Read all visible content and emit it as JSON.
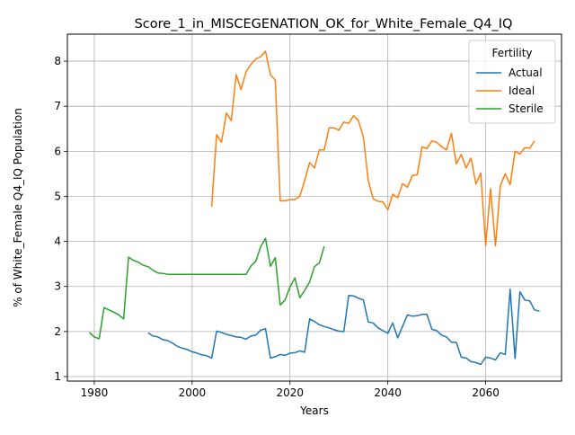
{
  "chart_data": {
    "type": "line",
    "title": "Score_1_in_MISCEGENATION_OK_for_White_Female_Q4_IQ",
    "xlabel": "Years",
    "ylabel": "% of White_Female Q4_IQ Population",
    "xlim": [
      1974.5,
      2075.5
    ],
    "ylim": [
      0.9,
      8.6
    ],
    "xticks": [
      1980,
      2000,
      2020,
      2040,
      2060
    ],
    "yticks": [
      1,
      2,
      3,
      4,
      5,
      6,
      7,
      8
    ],
    "grid": true,
    "legend": {
      "title": "Fertility",
      "position": "top-right"
    },
    "series": [
      {
        "name": "Actual",
        "color": "#1f77b4",
        "points": [
          [
            1991,
            1.97
          ],
          [
            1992,
            1.9
          ],
          [
            1993,
            1.88
          ],
          [
            1994,
            1.82
          ],
          [
            1995,
            1.8
          ],
          [
            1996,
            1.74
          ],
          [
            1997,
            1.67
          ],
          [
            1998,
            1.63
          ],
          [
            1999,
            1.6
          ],
          [
            2000,
            1.55
          ],
          [
            2001,
            1.52
          ],
          [
            2002,
            1.48
          ],
          [
            2003,
            1.46
          ],
          [
            2004,
            1.41
          ],
          [
            2005,
            2.01
          ],
          [
            2006,
            1.98
          ],
          [
            2007,
            1.94
          ],
          [
            2008,
            1.91
          ],
          [
            2009,
            1.88
          ],
          [
            2010,
            1.87
          ],
          [
            2011,
            1.83
          ],
          [
            2012,
            1.9
          ],
          [
            2013,
            1.92
          ],
          [
            2014,
            2.03
          ],
          [
            2015,
            2.06
          ],
          [
            2016,
            1.41
          ],
          [
            2017,
            1.44
          ],
          [
            2018,
            1.49
          ],
          [
            2019,
            1.47
          ],
          [
            2020,
            1.52
          ],
          [
            2021,
            1.53
          ],
          [
            2022,
            1.57
          ],
          [
            2023,
            1.54
          ],
          [
            2024,
            2.28
          ],
          [
            2025,
            2.22
          ],
          [
            2026,
            2.15
          ],
          [
            2027,
            2.11
          ],
          [
            2028,
            2.08
          ],
          [
            2029,
            2.04
          ],
          [
            2030,
            2.01
          ],
          [
            2031,
            2.0
          ],
          [
            2032,
            2.8
          ],
          [
            2033,
            2.79
          ],
          [
            2034,
            2.74
          ],
          [
            2035,
            2.7
          ],
          [
            2036,
            2.21
          ],
          [
            2037,
            2.19
          ],
          [
            2038,
            2.08
          ],
          [
            2039,
            2.02
          ],
          [
            2040,
            1.96
          ],
          [
            2041,
            2.19
          ],
          [
            2042,
            1.86
          ],
          [
            2043,
            2.11
          ],
          [
            2044,
            2.37
          ],
          [
            2045,
            2.34
          ],
          [
            2046,
            2.35
          ],
          [
            2047,
            2.38
          ],
          [
            2048,
            2.38
          ],
          [
            2049,
            2.05
          ],
          [
            2050,
            2.02
          ],
          [
            2051,
            1.92
          ],
          [
            2052,
            1.88
          ],
          [
            2053,
            1.76
          ],
          [
            2054,
            1.76
          ],
          [
            2055,
            1.43
          ],
          [
            2056,
            1.41
          ],
          [
            2057,
            1.33
          ],
          [
            2058,
            1.31
          ],
          [
            2059,
            1.27
          ],
          [
            2060,
            1.43
          ],
          [
            2061,
            1.41
          ],
          [
            2062,
            1.37
          ],
          [
            2063,
            1.53
          ],
          [
            2064,
            1.49
          ],
          [
            2065,
            2.94
          ],
          [
            2066,
            1.4
          ],
          [
            2067,
            2.88
          ],
          [
            2068,
            2.7
          ],
          [
            2069,
            2.68
          ],
          [
            2070,
            2.48
          ],
          [
            2071,
            2.45
          ]
        ]
      },
      {
        "name": "Ideal",
        "color": "#ff7f0e",
        "points": [
          [
            2004,
            4.77
          ],
          [
            2005,
            6.37
          ],
          [
            2006,
            6.2
          ],
          [
            2007,
            6.85
          ],
          [
            2008,
            6.68
          ],
          [
            2009,
            7.7
          ],
          [
            2010,
            7.37
          ],
          [
            2011,
            7.76
          ],
          [
            2012,
            7.93
          ],
          [
            2013,
            8.05
          ],
          [
            2014,
            8.1
          ],
          [
            2015,
            8.22
          ],
          [
            2016,
            7.7
          ],
          [
            2017,
            7.58
          ],
          [
            2018,
            4.9
          ],
          [
            2019,
            4.9
          ],
          [
            2020,
            4.93
          ],
          [
            2021,
            4.93
          ],
          [
            2022,
            5.0
          ],
          [
            2023,
            5.35
          ],
          [
            2024,
            5.75
          ],
          [
            2025,
            5.63
          ],
          [
            2026,
            6.03
          ],
          [
            2027,
            6.03
          ],
          [
            2028,
            6.52
          ],
          [
            2029,
            6.52
          ],
          [
            2030,
            6.47
          ],
          [
            2031,
            6.65
          ],
          [
            2032,
            6.62
          ],
          [
            2033,
            6.79
          ],
          [
            2034,
            6.68
          ],
          [
            2035,
            6.31
          ],
          [
            2036,
            5.35
          ],
          [
            2037,
            4.95
          ],
          [
            2038,
            4.89
          ],
          [
            2039,
            4.88
          ],
          [
            2040,
            4.7
          ],
          [
            2041,
            5.05
          ],
          [
            2042,
            4.97
          ],
          [
            2043,
            5.28
          ],
          [
            2044,
            5.2
          ],
          [
            2045,
            5.46
          ],
          [
            2046,
            5.48
          ],
          [
            2047,
            6.1
          ],
          [
            2048,
            6.06
          ],
          [
            2049,
            6.23
          ],
          [
            2050,
            6.2
          ],
          [
            2051,
            6.1
          ],
          [
            2052,
            6.03
          ],
          [
            2053,
            6.4
          ],
          [
            2054,
            5.72
          ],
          [
            2055,
            5.93
          ],
          [
            2056,
            5.63
          ],
          [
            2057,
            5.85
          ],
          [
            2058,
            5.27
          ],
          [
            2059,
            5.52
          ],
          [
            2060,
            3.9
          ],
          [
            2061,
            5.17
          ],
          [
            2062,
            3.9
          ],
          [
            2063,
            5.24
          ],
          [
            2064,
            5.5
          ],
          [
            2065,
            5.26
          ],
          [
            2066,
            6.0
          ],
          [
            2067,
            5.94
          ],
          [
            2068,
            6.08
          ],
          [
            2069,
            6.07
          ],
          [
            2070,
            6.23
          ]
        ]
      },
      {
        "name": "Sterile",
        "color": "#2ca02c",
        "points": [
          [
            1979,
            1.98
          ],
          [
            1980,
            1.88
          ],
          [
            1981,
            1.84
          ],
          [
            1982,
            2.53
          ],
          [
            1983,
            2.48
          ],
          [
            1984,
            2.43
          ],
          [
            1985,
            2.37
          ],
          [
            1986,
            2.28
          ],
          [
            1987,
            3.65
          ],
          [
            1988,
            3.58
          ],
          [
            1989,
            3.54
          ],
          [
            1990,
            3.47
          ],
          [
            1991,
            3.44
          ],
          [
            1992,
            3.36
          ],
          [
            1993,
            3.3
          ],
          [
            1994,
            3.29
          ],
          [
            1995,
            3.27
          ],
          [
            1996,
            3.27
          ],
          [
            2011,
            3.27
          ],
          [
            2012,
            3.45
          ],
          [
            2013,
            3.56
          ],
          [
            2014,
            3.88
          ],
          [
            2015,
            4.07
          ],
          [
            2016,
            3.45
          ],
          [
            2017,
            3.64
          ],
          [
            2018,
            2.59
          ],
          [
            2019,
            2.7
          ],
          [
            2020,
            2.99
          ],
          [
            2021,
            3.19
          ],
          [
            2022,
            2.75
          ],
          [
            2023,
            2.91
          ],
          [
            2024,
            3.1
          ],
          [
            2025,
            3.44
          ],
          [
            2026,
            3.52
          ],
          [
            2027,
            3.89
          ]
        ]
      }
    ]
  }
}
